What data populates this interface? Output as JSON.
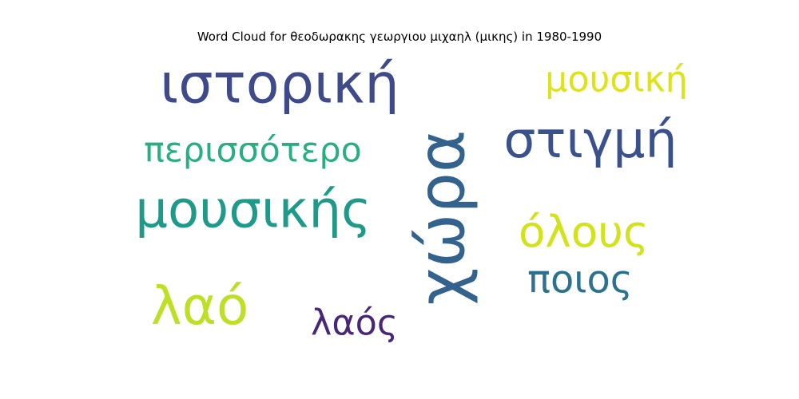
{
  "chart_data": {
    "type": "wordcloud",
    "title": "Word Cloud for θεοδωρακης γεωργιου μιχαηλ (μικης) in 1980-1990",
    "words": [
      {
        "text": "ιστορική",
        "weight": 1.0,
        "color": "#3e4a89",
        "orientation": "horizontal"
      },
      {
        "text": "χώρα",
        "weight": 0.98,
        "color": "#33638d",
        "orientation": "vertical"
      },
      {
        "text": "μουσικής",
        "weight": 0.86,
        "color": "#1f9a8a",
        "orientation": "horizontal"
      },
      {
        "text": "στιγμή",
        "weight": 0.8,
        "color": "#3b518b",
        "orientation": "horizontal"
      },
      {
        "text": "λαό",
        "weight": 0.78,
        "color": "#bddf26",
        "orientation": "horizontal"
      },
      {
        "text": "όλους",
        "weight": 0.74,
        "color": "#d2e21b",
        "orientation": "horizontal"
      },
      {
        "text": "ποιος",
        "weight": 0.66,
        "color": "#2c728e",
        "orientation": "horizontal"
      },
      {
        "text": "περισσότερο",
        "weight": 0.55,
        "color": "#29af7f",
        "orientation": "horizontal"
      },
      {
        "text": "μουσική",
        "weight": 0.52,
        "color": "#dde318",
        "orientation": "horizontal"
      },
      {
        "text": "λαός",
        "weight": 0.48,
        "color": "#482777",
        "orientation": "horizontal"
      }
    ]
  }
}
